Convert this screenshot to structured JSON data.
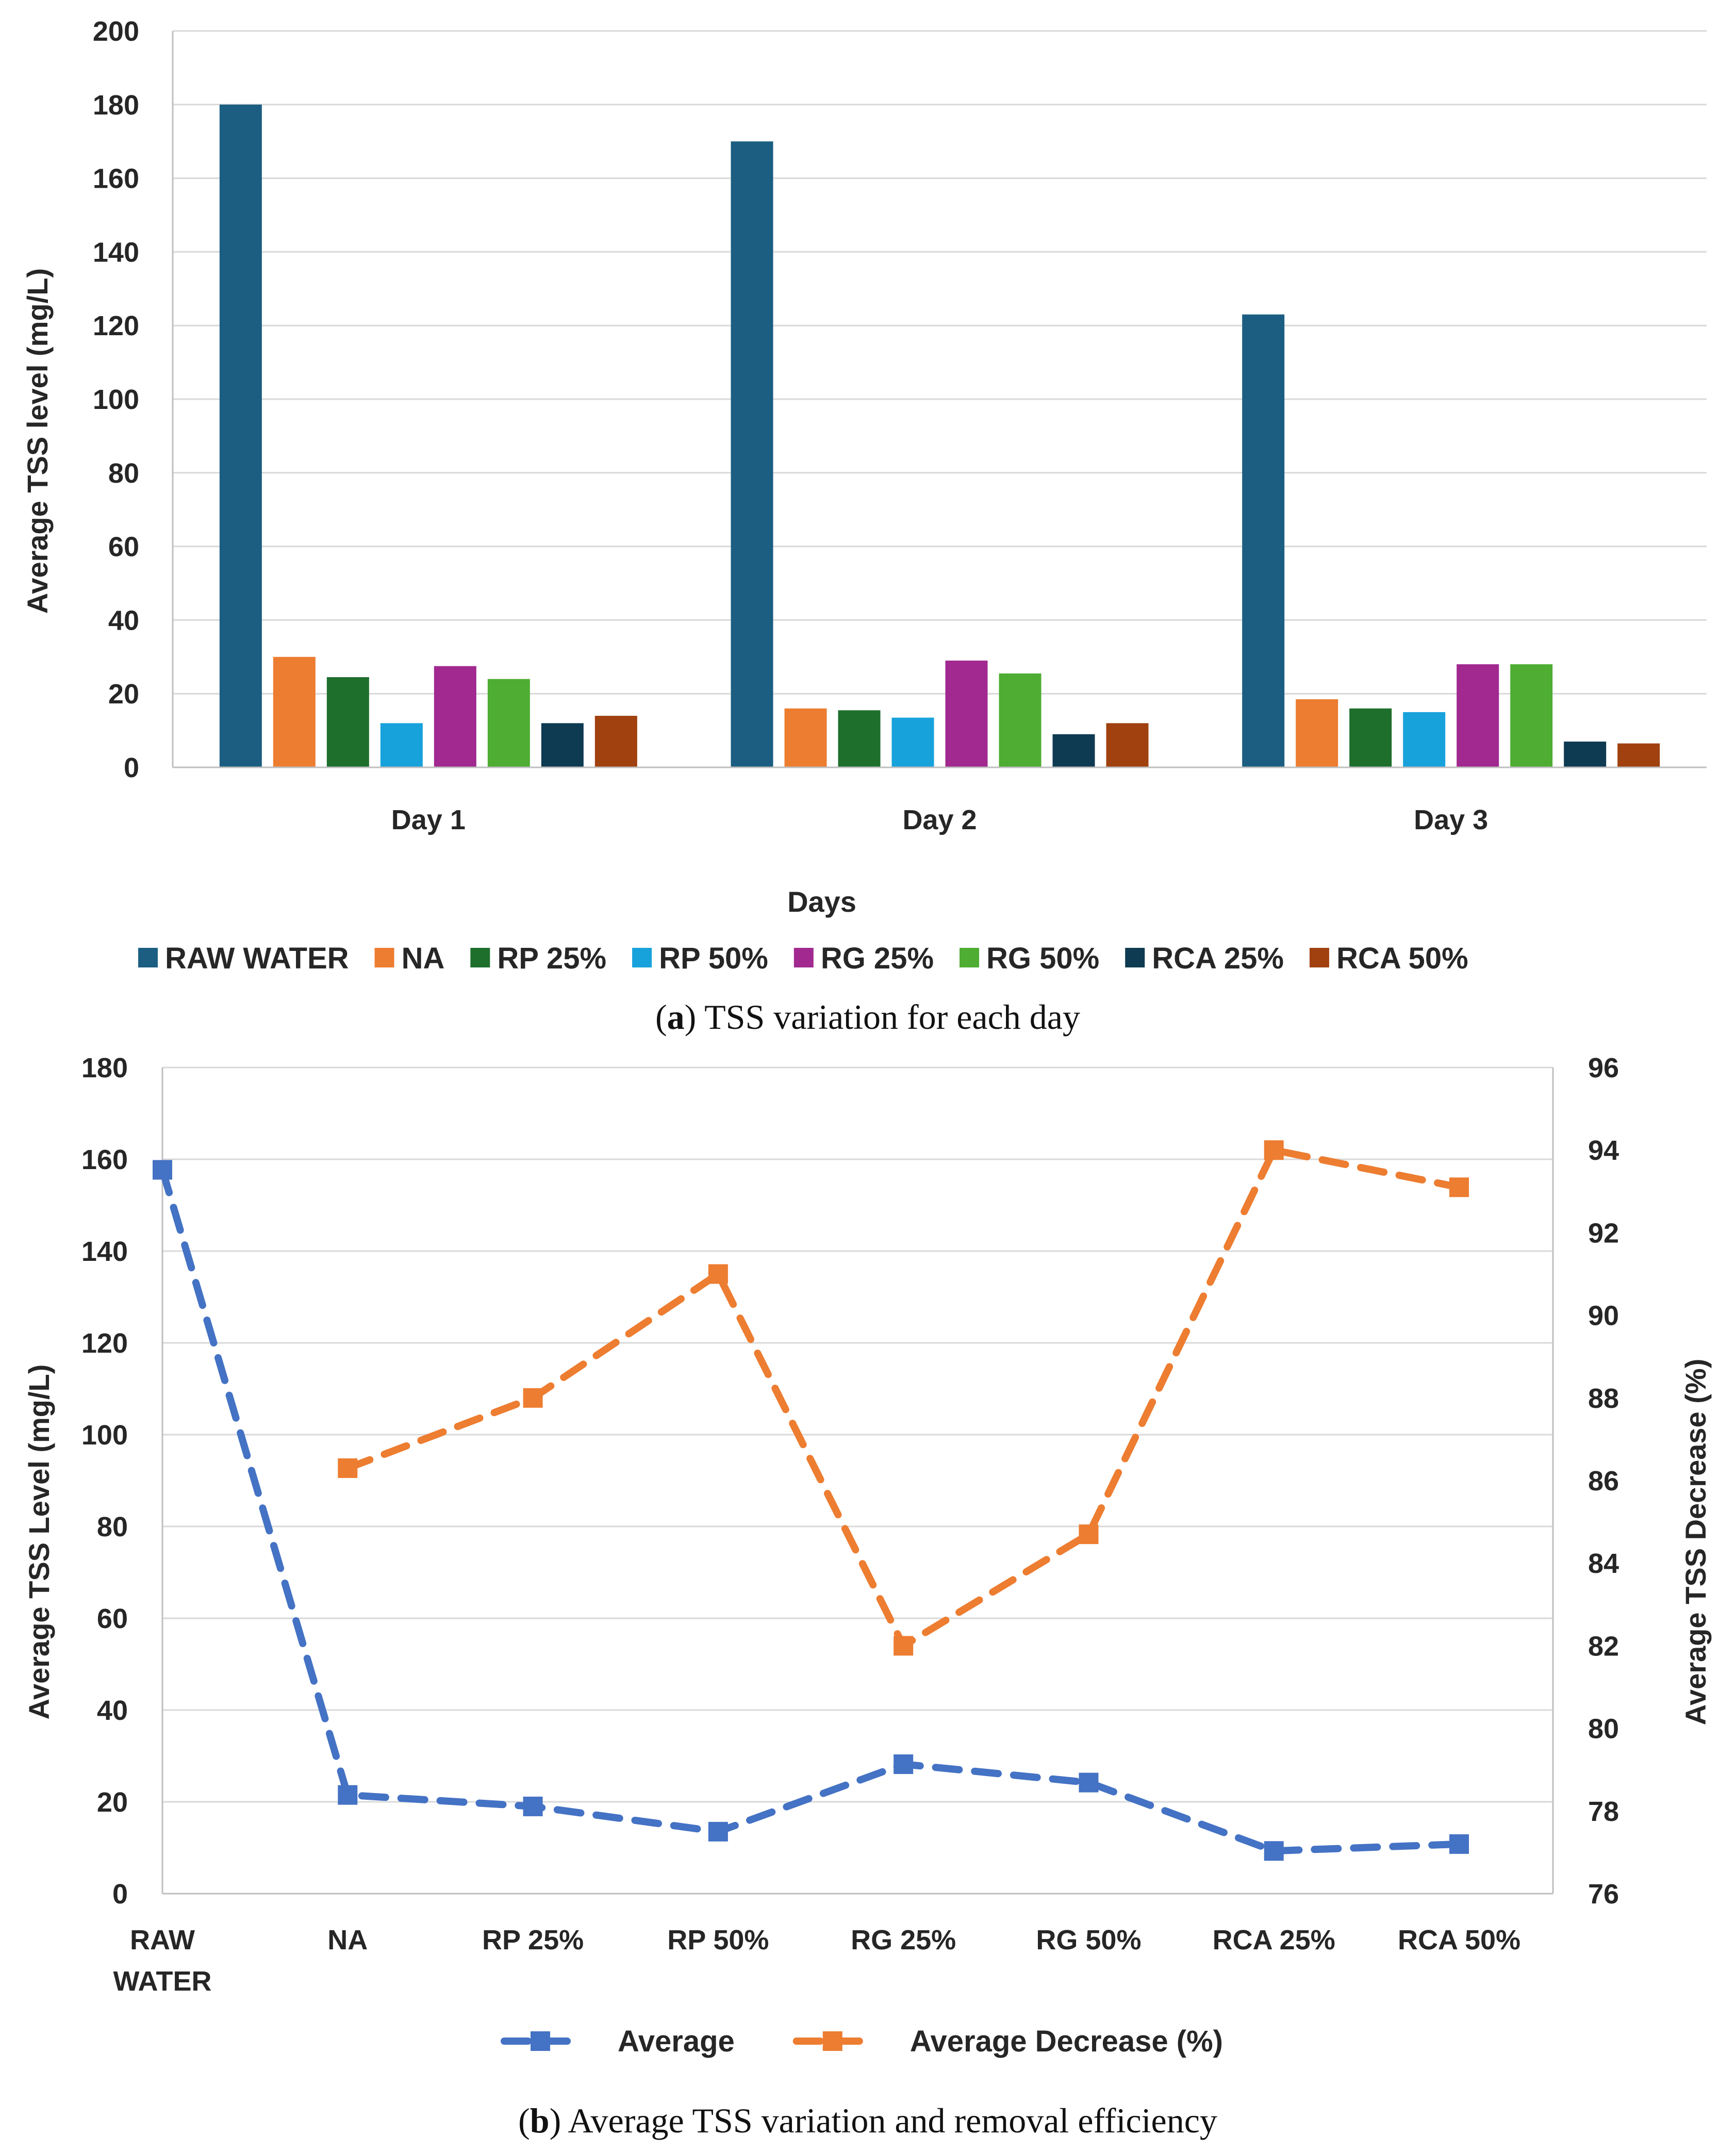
{
  "chart_data": [
    {
      "type": "bar",
      "caption_letter": "a",
      "caption_text": " TSS variation for each day",
      "title": "",
      "xlabel": "Days",
      "ylabel": "Average TSS level (mg/L)",
      "ylim": [
        0,
        200
      ],
      "yticks": [
        "0",
        "20",
        "40",
        "60",
        "80",
        "100",
        "120",
        "140",
        "160",
        "180",
        "200"
      ],
      "grid": true,
      "legend_position": "bottom",
      "categories": [
        "Day 1",
        "Day 2",
        "Day 3"
      ],
      "series": [
        {
          "name": "RAW WATER",
          "color": "#1B5E82",
          "values": [
            180,
            170,
            123
          ]
        },
        {
          "name": "NA",
          "color": "#ED7D31",
          "values": [
            30,
            16,
            18.5
          ]
        },
        {
          "name": "RP 25%",
          "color": "#1E6F2C",
          "values": [
            24.5,
            15.5,
            16
          ]
        },
        {
          "name": "RP 50%",
          "color": "#17A2DC",
          "values": [
            12,
            13.5,
            15
          ]
        },
        {
          "name": "RG 25%",
          "color": "#A12990",
          "values": [
            27.5,
            29,
            28
          ]
        },
        {
          "name": "RG 50%",
          "color": "#4EAD32",
          "values": [
            24,
            25.5,
            28
          ]
        },
        {
          "name": "RCA 25%",
          "color": "#0E3A52",
          "values": [
            12,
            9,
            7
          ]
        },
        {
          "name": "RCA 50%",
          "color": "#A0410F",
          "values": [
            14,
            12,
            6.5
          ]
        }
      ]
    },
    {
      "type": "line",
      "caption_letter": "b",
      "caption_text": " Average TSS variation and removal efficiency",
      "title": "",
      "xlabel": "",
      "ylabel": "Average TSS Level (mg/L)",
      "y2label": "Average TSS Decrease (%)",
      "ylim": [
        0,
        180
      ],
      "y2lim": [
        76,
        96
      ],
      "yticks": [
        "0",
        "20",
        "40",
        "60",
        "80",
        "100",
        "120",
        "140",
        "160",
        "180"
      ],
      "y2ticks": [
        "76",
        "78",
        "80",
        "82",
        "84",
        "86",
        "88",
        "90",
        "92",
        "94",
        "96"
      ],
      "grid": true,
      "legend_position": "bottom",
      "categories": [
        [
          "RAW",
          "WATER"
        ],
        [
          "NA"
        ],
        [
          "RP 25%"
        ],
        [
          "RP 50%"
        ],
        [
          "RG 25%"
        ],
        [
          "RG 50%"
        ],
        [
          "RCA 25%"
        ],
        [
          "RCA 50%"
        ]
      ],
      "series": [
        {
          "name": "Average",
          "axis": "left",
          "color": "#4472C4",
          "values": [
            157.7,
            21.5,
            19,
            13.5,
            28.2,
            24.2,
            9.3,
            10.8
          ]
        },
        {
          "name": "Average Decrease (%)",
          "axis": "right",
          "color": "#ED7D31",
          "values": [
            null,
            86.3,
            88,
            91,
            82,
            84.7,
            94,
            93.1
          ]
        }
      ]
    }
  ]
}
